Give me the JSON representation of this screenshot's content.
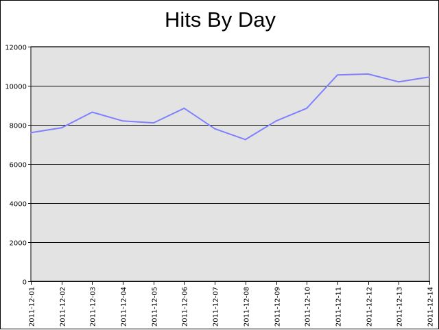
{
  "chart_data": {
    "type": "line",
    "title": "Hits By Day",
    "xlabel": "",
    "ylabel": "",
    "ylim": [
      0,
      12000
    ],
    "yticks": [
      0,
      2000,
      4000,
      6000,
      8000,
      10000,
      12000
    ],
    "grid": "horizontal",
    "legend": "none",
    "x": [
      "2011-12-01",
      "2011-12-02",
      "2011-12-03",
      "2011-12-04",
      "2011-12-05",
      "2011-12-06",
      "2011-12-07",
      "2011-12-08",
      "2011-12-09",
      "2011-12-10",
      "2011-12-11",
      "2011-12-12",
      "2011-12-13",
      "2011-12-14"
    ],
    "series": [
      {
        "values": [
          7600,
          7850,
          8650,
          8200,
          8100,
          8850,
          7800,
          7250,
          8200,
          8850,
          10550,
          10600,
          10200,
          10450
        ]
      }
    ],
    "colors": {
      "plot_background": "#e3e3e3",
      "line": "#8080ff",
      "grid": "#000000"
    }
  }
}
